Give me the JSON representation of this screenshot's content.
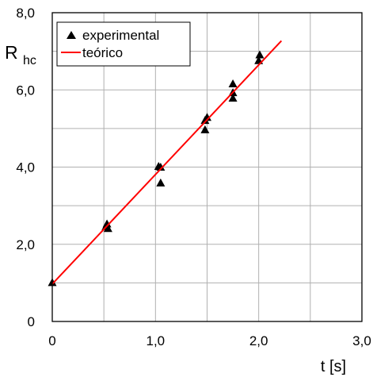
{
  "chart_data": {
    "type": "scatter",
    "ylabel_main": "R",
    "ylabel_sub": "hc",
    "xlabel": "t [s]",
    "xlim": [
      0,
      3
    ],
    "ylim": [
      0,
      8
    ],
    "grid": true,
    "legend_position": "top-left",
    "x_ticks": [
      0,
      0.5,
      1,
      1.5,
      2,
      2.5,
      3
    ],
    "y_ticks": [
      0,
      1,
      2,
      3,
      4,
      5,
      6,
      7,
      8
    ],
    "x_tick_labels": [
      {
        "value": 0,
        "label": "0"
      },
      {
        "value": 1,
        "label": "1,0"
      },
      {
        "value": 2,
        "label": "2,0"
      },
      {
        "value": 3,
        "label": "3,0"
      }
    ],
    "y_tick_labels": [
      {
        "value": 0,
        "label": "0"
      },
      {
        "value": 2,
        "label": "2,0"
      },
      {
        "value": 4,
        "label": "4,0"
      },
      {
        "value": 6,
        "label": "6,0"
      },
      {
        "value": 8,
        "label": "8,0"
      }
    ],
    "series": [
      {
        "name": "experimental",
        "style": "markers",
        "marker": "triangle",
        "color": "#000000",
        "points": [
          {
            "x": 0.0,
            "y": 1.0
          },
          {
            "x": 0.52,
            "y": 2.45
          },
          {
            "x": 0.53,
            "y": 2.52
          },
          {
            "x": 0.54,
            "y": 2.4
          },
          {
            "x": 1.03,
            "y": 4.01
          },
          {
            "x": 1.05,
            "y": 3.99
          },
          {
            "x": 1.05,
            "y": 3.58
          },
          {
            "x": 1.48,
            "y": 5.2
          },
          {
            "x": 1.5,
            "y": 5.28
          },
          {
            "x": 1.48,
            "y": 4.96
          },
          {
            "x": 1.75,
            "y": 6.15
          },
          {
            "x": 1.75,
            "y": 5.92
          },
          {
            "x": 1.75,
            "y": 5.78
          },
          {
            "x": 2.01,
            "y": 6.9
          },
          {
            "x": 2.0,
            "y": 6.75
          }
        ]
      },
      {
        "name": "teórico",
        "style": "line",
        "color": "#ff0000",
        "points": [
          {
            "x": 0.0,
            "y": 0.97
          },
          {
            "x": 2.22,
            "y": 7.27
          }
        ]
      }
    ]
  }
}
